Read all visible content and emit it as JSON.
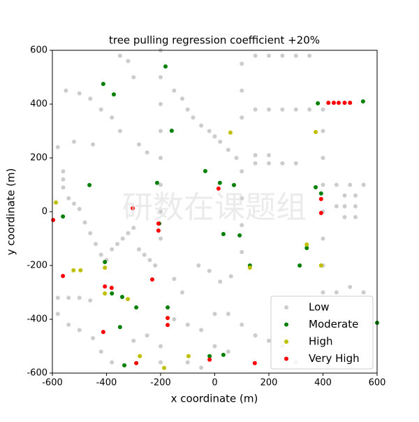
{
  "chart_data": {
    "type": "scatter",
    "title": "tree pulling regression coefficient +20%",
    "xlabel": "x coordinate (m)",
    "ylabel": "y coordinate (m)",
    "watermark": "研数在课题组",
    "xlim": [
      -600,
      600
    ],
    "ylim": [
      -600,
      600
    ],
    "xticks": [
      -600,
      -400,
      -200,
      0,
      200,
      400,
      600
    ],
    "yticks": [
      -600,
      -400,
      -200,
      0,
      200,
      400,
      600
    ],
    "legend": "lower right",
    "series": [
      {
        "name": "Low",
        "color": "#808080",
        "x": [
          -560,
          -560,
          -560,
          -540,
          -520,
          -500,
          -480,
          -460,
          -440,
          -420,
          -400,
          -380,
          -360,
          -340,
          -320,
          -300,
          -280,
          -260,
          -240,
          -220,
          -200,
          -200,
          -200,
          -200,
          -200,
          -200,
          -200,
          -200,
          -200,
          -200,
          -150,
          -120,
          -100,
          -80,
          -50,
          -20,
          0,
          20,
          50,
          80,
          100,
          100,
          100,
          100,
          100,
          100,
          100,
          150,
          200,
          250,
          300,
          350,
          400,
          150,
          200,
          250,
          300,
          350,
          150,
          200,
          250,
          300,
          150,
          200,
          400,
          450,
          500,
          550,
          400,
          400,
          400,
          400,
          400,
          400,
          450,
          500,
          550,
          450,
          480,
          520,
          480,
          520,
          480,
          520,
          -580,
          -540,
          -500,
          -460,
          -580,
          -540,
          -500,
          -450,
          -420,
          -380,
          -300,
          -250,
          -150,
          -100,
          -50,
          0,
          50,
          100,
          150,
          200,
          250,
          300,
          -100,
          -50,
          0,
          50,
          -350,
          -380,
          -420,
          -460,
          -500,
          -550,
          -300,
          -320,
          -350,
          -280,
          -250,
          -150,
          -120,
          -60,
          -20,
          20,
          60,
          -450,
          -520,
          -580
        ],
        "y": [
          150,
          120,
          90,
          50,
          30,
          10,
          -40,
          -80,
          -120,
          -160,
          -180,
          -140,
          -120,
          -100,
          -80,
          -60,
          -140,
          -160,
          -180,
          -200,
          600,
          500,
          400,
          300,
          200,
          100,
          0,
          -100,
          -500,
          -560,
          450,
          420,
          380,
          350,
          320,
          300,
          280,
          260,
          230,
          200,
          550,
          450,
          350,
          150,
          50,
          -50,
          -150,
          380,
          380,
          380,
          380,
          380,
          380,
          580,
          580,
          580,
          580,
          580,
          180,
          180,
          180,
          180,
          210,
          210,
          100,
          100,
          100,
          100,
          300,
          200,
          0,
          -100,
          -200,
          -300,
          -300,
          -280,
          -300,
          20,
          20,
          20,
          -20,
          -20,
          60,
          60,
          -320,
          -320,
          -320,
          -330,
          -380,
          -420,
          -440,
          -470,
          -520,
          -560,
          -480,
          -460,
          -400,
          -420,
          -440,
          -380,
          -380,
          -420,
          -460,
          -480,
          -500,
          -560,
          -560,
          -580,
          -500,
          -520,
          300,
          350,
          380,
          420,
          440,
          450,
          500,
          560,
          580,
          250,
          220,
          -250,
          -300,
          -200,
          -220,
          -260,
          -240,
          250,
          260,
          240
        ]
      },
      {
        "name": "Moderate",
        "color": "#008000",
        "x": [
          -412,
          -373,
          -182,
          381,
          548,
          -159,
          -35,
          19,
          71,
          373,
          393,
          -463,
          -213,
          -205,
          -406,
          32,
          92,
          340,
          314,
          130,
          -380,
          -342,
          -290,
          -174,
          -350,
          -19,
          32,
          600,
          -561,
          -334
        ],
        "y": [
          475,
          436,
          540,
          403,
          410,
          301,
          151,
          107,
          99,
          91,
          68,
          99,
          107,
          -44,
          -187,
          -83,
          -88,
          -135,
          -200,
          -200,
          -304,
          -317,
          -356,
          -356,
          -429,
          -537,
          -532,
          -413,
          -18,
          -571
        ]
      },
      {
        "name": "High",
        "color": "#bfbf00",
        "x": [
          58,
          373,
          393,
          -587,
          -522,
          -496,
          -406,
          -321,
          -277,
          -187,
          -97,
          130,
          340,
          -406
        ],
        "y": [
          294,
          296,
          -200,
          34,
          -218,
          -218,
          -208,
          -325,
          -537,
          -581,
          -537,
          -208,
          -122,
          -304
        ]
      },
      {
        "name": "Very High",
        "color": "#ff0000",
        "x": [
          420,
          440,
          458,
          480,
          500,
          393,
          393,
          -303,
          -208,
          -208,
          14,
          -406,
          -381,
          -231,
          -412,
          -174,
          -174,
          -290,
          -19,
          148,
          -561,
          -597
        ],
        "y": [
          405,
          405,
          405,
          405,
          405,
          47,
          -5,
          13,
          -44,
          -70,
          86,
          -278,
          -283,
          -252,
          -447,
          -395,
          -421,
          -563,
          -550,
          -563,
          -239,
          -31
        ]
      }
    ]
  }
}
